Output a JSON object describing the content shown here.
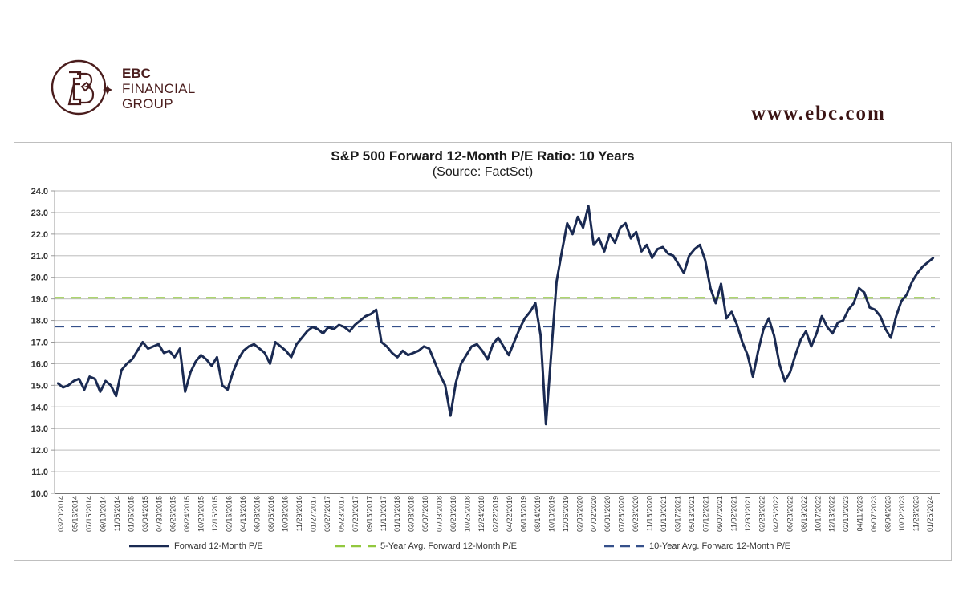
{
  "brand": {
    "logo_line1": "EBC",
    "logo_line2": "FINANCIAL",
    "logo_line3": "GROUP",
    "website": "www.ebc.com",
    "brand_color": "#4a1d1d"
  },
  "chart_data": {
    "type": "line",
    "title": "S&P 500 Forward 12-Month P/E Ratio: 10 Years",
    "subtitle": "(Source: FactSet)",
    "xlabel": "",
    "ylabel": "",
    "ylim": [
      10.0,
      24.0
    ],
    "yticks": [
      "10.0",
      "11.0",
      "12.0",
      "13.0",
      "14.0",
      "15.0",
      "16.0",
      "17.0",
      "18.0",
      "19.0",
      "20.0",
      "21.0",
      "22.0",
      "23.0",
      "24.0"
    ],
    "xticks": [
      "03/20/2014",
      "05/16/2014",
      "07/15/2014",
      "09/10/2014",
      "11/05/2014",
      "01/05/2015",
      "03/04/2015",
      "04/30/2015",
      "06/26/2015",
      "08/24/2015",
      "10/20/2015",
      "12/16/2015",
      "02/16/2016",
      "04/13/2016",
      "06/08/2016",
      "08/05/2016",
      "10/03/2016",
      "11/29/2016",
      "01/27/2017",
      "03/27/2017",
      "05/23/2017",
      "07/20/2017",
      "09/15/2017",
      "11/10/2017",
      "01/10/2018",
      "03/08/2018",
      "05/07/2018",
      "07/03/2018",
      "08/28/2018",
      "10/25/2018",
      "12/24/2018",
      "02/22/2019",
      "04/22/2019",
      "06/18/2019",
      "08/14/2019",
      "10/10/2019",
      "12/06/2019",
      "02/05/2020",
      "04/02/2020",
      "06/01/2020",
      "07/28/2020",
      "09/23/2020",
      "11/18/2020",
      "01/19/2021",
      "03/17/2021",
      "05/13/2021",
      "07/12/2021",
      "09/07/2021",
      "11/02/2021",
      "12/30/2021",
      "02/28/2022",
      "04/26/2022",
      "06/23/2022",
      "08/19/2022",
      "10/17/2022",
      "12/13/2022",
      "02/10/2023",
      "04/11/2023",
      "06/07/2023",
      "08/04/2023",
      "10/02/2023",
      "11/28/2023",
      "01/26/2024"
    ],
    "grid": true,
    "legend_position": "bottom",
    "series": [
      {
        "name": "Forward 12-Month P/E",
        "color": "#1a2a52",
        "style": "solid",
        "values": [
          15.1,
          14.9,
          15.0,
          15.2,
          15.3,
          14.8,
          15.4,
          15.3,
          14.7,
          15.2,
          15.0,
          14.5,
          15.7,
          16.0,
          16.2,
          16.6,
          17.0,
          16.7,
          16.8,
          16.9,
          16.5,
          16.6,
          16.3,
          16.7,
          14.7,
          15.6,
          16.1,
          16.4,
          16.2,
          15.9,
          16.3,
          15.0,
          14.8,
          15.6,
          16.2,
          16.6,
          16.8,
          16.9,
          16.7,
          16.5,
          16.0,
          17.0,
          16.8,
          16.6,
          16.3,
          16.9,
          17.2,
          17.5,
          17.7,
          17.6,
          17.4,
          17.7,
          17.6,
          17.8,
          17.7,
          17.5,
          17.8,
          18.0,
          18.2,
          18.3,
          18.5,
          17.0,
          16.8,
          16.5,
          16.3,
          16.6,
          16.4,
          16.5,
          16.6,
          16.8,
          16.7,
          16.1,
          15.5,
          15.0,
          13.6,
          15.1,
          16.0,
          16.4,
          16.8,
          16.9,
          16.6,
          16.2,
          16.9,
          17.2,
          16.8,
          16.4,
          17.0,
          17.6,
          18.1,
          18.4,
          18.8,
          17.3,
          13.2,
          16.5,
          19.8,
          21.2,
          22.5,
          22.0,
          22.8,
          22.3,
          23.3,
          21.5,
          21.8,
          21.2,
          22.0,
          21.6,
          22.3,
          22.5,
          21.8,
          22.1,
          21.2,
          21.5,
          20.9,
          21.3,
          21.4,
          21.1,
          21.0,
          20.6,
          20.2,
          21.0,
          21.3,
          21.5,
          20.8,
          19.5,
          18.8,
          19.7,
          18.1,
          18.4,
          17.8,
          17.0,
          16.4,
          15.4,
          16.6,
          17.6,
          18.1,
          17.3,
          16.0,
          15.2,
          15.6,
          16.4,
          17.1,
          17.5,
          16.8,
          17.4,
          18.2,
          17.7,
          17.4,
          17.9,
          18.0,
          18.5,
          18.8,
          19.5,
          19.3,
          18.6,
          18.5,
          18.2,
          17.6,
          17.2,
          18.2,
          18.9,
          19.2,
          19.8,
          20.2,
          20.5,
          20.7,
          20.9
        ]
      },
      {
        "name": "5-Year Avg. Forward 12-Month P/E",
        "color": "#92c83e",
        "style": "dashed",
        "value": 19.05
      },
      {
        "name": "10-Year Avg. Forward 12-Month P/E",
        "color": "#35508a",
        "style": "dashed",
        "value": 17.72
      }
    ]
  }
}
